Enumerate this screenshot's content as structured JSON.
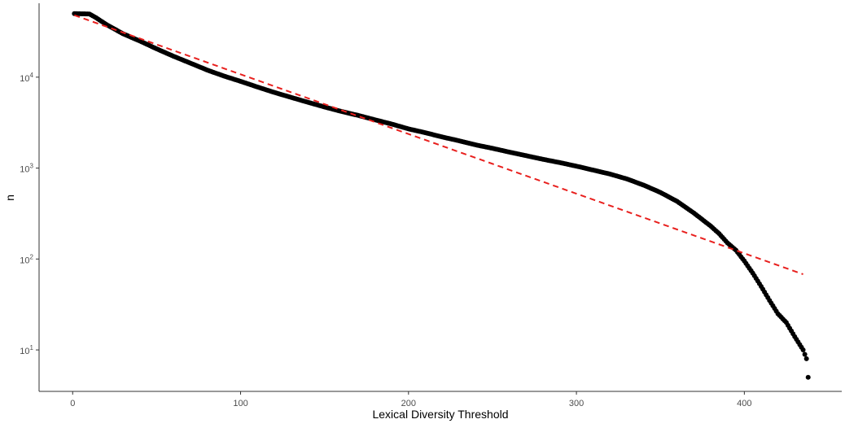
{
  "chart_data": {
    "type": "scatter",
    "title": "",
    "xlabel": "Lexical Diversity Threshold",
    "ylabel": "n",
    "x_ticks": [
      0,
      100,
      200,
      300,
      400
    ],
    "y_ticks": [
      {
        "value": 10,
        "base": "10",
        "exp": "1"
      },
      {
        "value": 100,
        "base": "10",
        "exp": "2"
      },
      {
        "value": 1000,
        "base": "10",
        "exp": "3"
      },
      {
        "value": 10000,
        "base": "10",
        "exp": "4"
      }
    ],
    "xlim": [
      -20,
      458
    ],
    "ylim": [
      3.5,
      65000
    ],
    "y_scale": "log10",
    "grid": false,
    "colors": {
      "points": "#000000",
      "fit": "#e8201e",
      "axis": "#333333",
      "tick_text": "#4d4d4d"
    },
    "series": [
      {
        "type": "points",
        "anchors": [
          [
            1,
            50000
          ],
          [
            10,
            49500
          ],
          [
            14,
            45000
          ],
          [
            20,
            38000
          ],
          [
            30,
            30000
          ],
          [
            40,
            25000
          ],
          [
            50,
            20500
          ],
          [
            60,
            17000
          ],
          [
            70,
            14300
          ],
          [
            80,
            12000
          ],
          [
            90,
            10300
          ],
          [
            100,
            9000
          ],
          [
            110,
            7800
          ],
          [
            120,
            6800
          ],
          [
            130,
            6000
          ],
          [
            140,
            5300
          ],
          [
            150,
            4700
          ],
          [
            160,
            4200
          ],
          [
            170,
            3800
          ],
          [
            180,
            3400
          ],
          [
            190,
            3050
          ],
          [
            200,
            2700
          ],
          [
            210,
            2450
          ],
          [
            220,
            2200
          ],
          [
            230,
            2000
          ],
          [
            240,
            1800
          ],
          [
            250,
            1650
          ],
          [
            260,
            1500
          ],
          [
            270,
            1370
          ],
          [
            280,
            1250
          ],
          [
            290,
            1150
          ],
          [
            300,
            1050
          ],
          [
            310,
            950
          ],
          [
            320,
            860
          ],
          [
            330,
            760
          ],
          [
            340,
            650
          ],
          [
            350,
            540
          ],
          [
            360,
            430
          ],
          [
            370,
            320
          ],
          [
            380,
            230
          ],
          [
            385,
            190
          ],
          [
            390,
            150
          ],
          [
            395,
            125
          ],
          [
            400,
            95
          ],
          [
            405,
            70
          ],
          [
            410,
            50
          ],
          [
            415,
            35
          ],
          [
            420,
            25
          ],
          [
            425,
            20
          ],
          [
            430,
            14
          ],
          [
            435,
            10
          ],
          [
            437,
            8
          ],
          [
            438,
            5
          ]
        ]
      },
      {
        "type": "fit_line",
        "style": "dashed",
        "points": [
          [
            1,
            48000
          ],
          [
            435,
            68
          ]
        ]
      }
    ]
  }
}
